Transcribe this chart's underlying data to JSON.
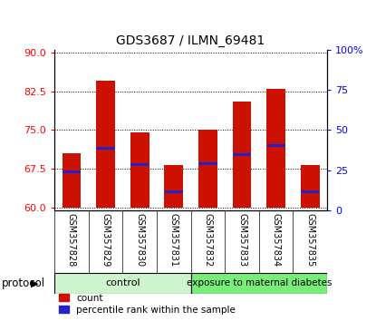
{
  "title": "GDS3687 / ILMN_69481",
  "samples": [
    "GSM357828",
    "GSM357829",
    "GSM357830",
    "GSM357831",
    "GSM357832",
    "GSM357833",
    "GSM357834",
    "GSM357835"
  ],
  "bar_tops": [
    70.5,
    84.5,
    74.5,
    68.3,
    75.0,
    80.5,
    83.0,
    68.3
  ],
  "bar_bottom": 60.0,
  "blue_values": [
    66.9,
    71.5,
    68.3,
    63.0,
    68.5,
    70.2,
    72.0,
    63.0
  ],
  "ylim_left": [
    59.5,
    90.5
  ],
  "ylim_right": [
    0,
    100
  ],
  "yticks_left": [
    60,
    67.5,
    75,
    82.5,
    90
  ],
  "yticks_right": [
    0,
    25,
    50,
    75,
    100
  ],
  "bar_color": "#cc1100",
  "blue_color": "#2222cc",
  "control_color": "#ccf5cc",
  "exposure_color": "#77ee77",
  "control_label": "control",
  "exposure_label": "exposure to maternal diabetes",
  "protocol_label": "protocol",
  "legend_count": "count",
  "legend_pct": "percentile rank within the sample",
  "n_control": 4,
  "n_exposure": 4,
  "bg_color": "#ffffff",
  "tick_label_area_color": "#d0d0d0",
  "bar_width": 0.55
}
